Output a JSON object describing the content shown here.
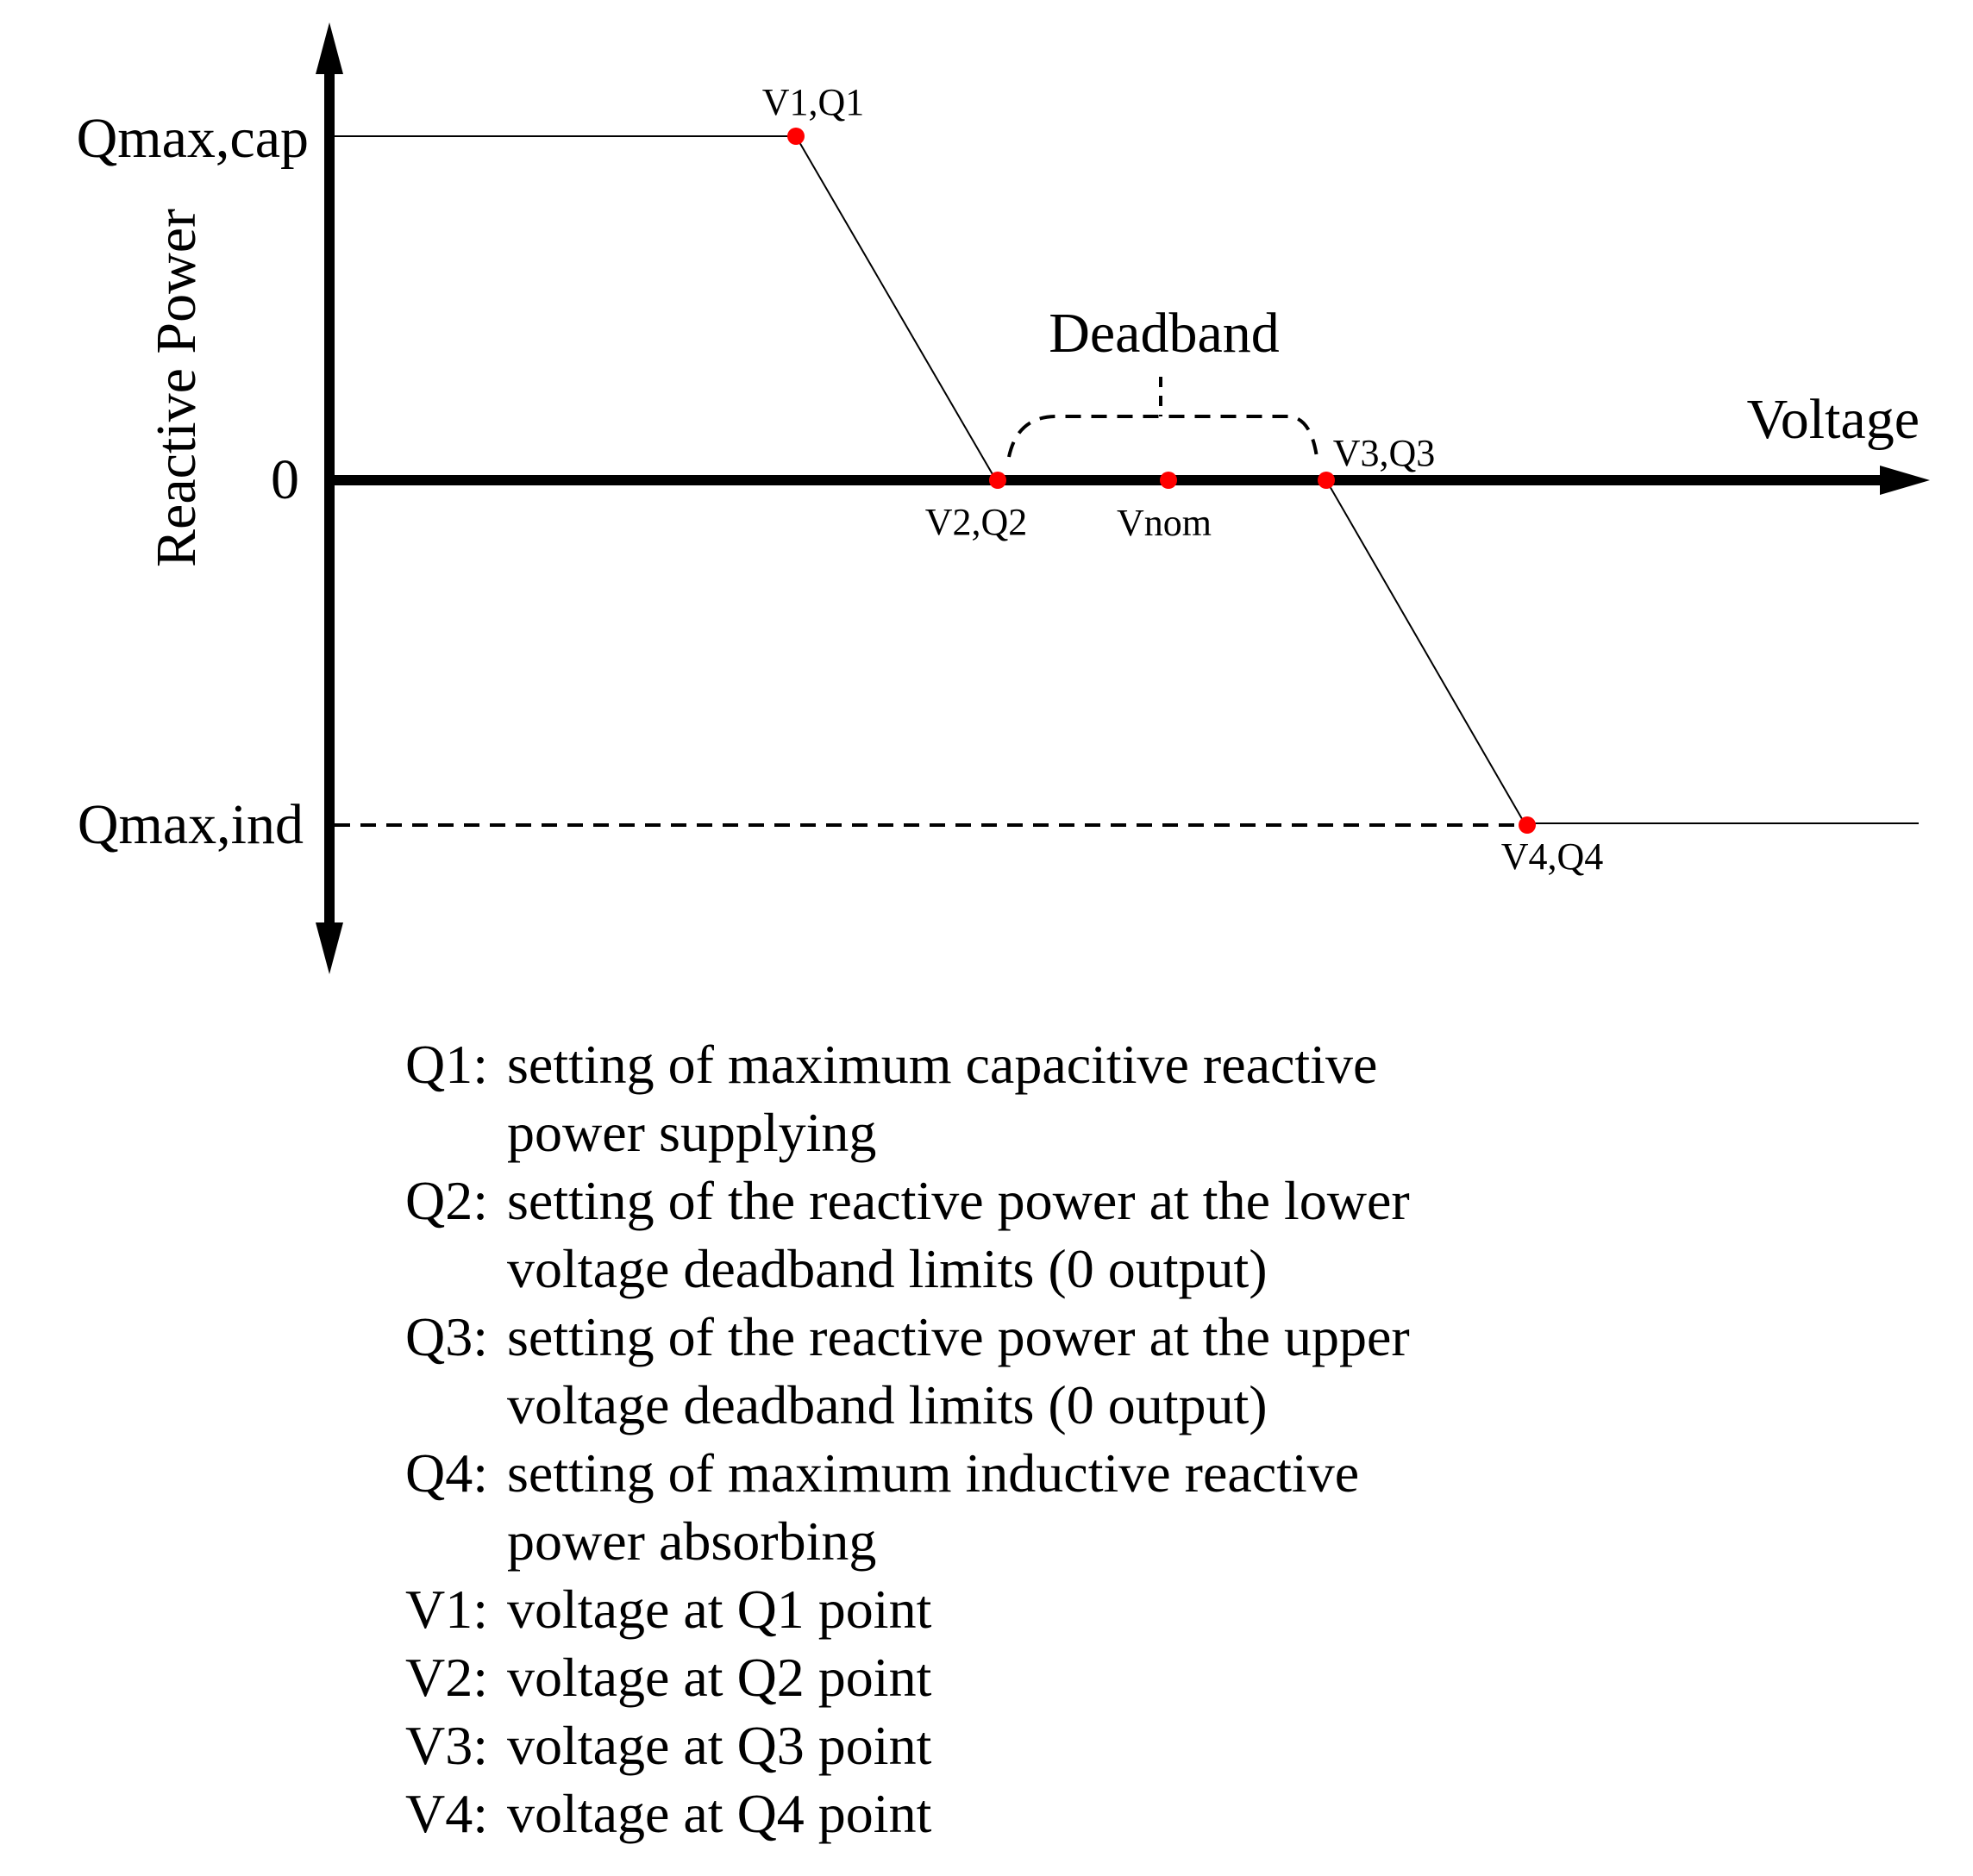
{
  "diagram": {
    "y_axis_label": "Reactive Power",
    "x_axis_label": "Voltage",
    "q_max_cap_label": "Qmax,cap",
    "zero_label": "0",
    "q_max_ind_label": "Qmax,ind",
    "deadband_label": "Deadband",
    "points": {
      "v1q1": "V1,Q1",
      "v2q2": "V2,Q2",
      "vnom": "Vnom",
      "v3q3": "V3,Q3",
      "v4q4": "V4,Q4"
    },
    "colors": {
      "point": "#ff0000",
      "line": "#000000"
    }
  },
  "notes": [
    {
      "key": "Q1:",
      "lines": [
        "setting of maximum capacitive reactive",
        "power supplying"
      ]
    },
    {
      "key": "Q2:",
      "lines": [
        "setting of the reactive power at the lower",
        "voltage deadband limits (0 output)"
      ]
    },
    {
      "key": "Q3:",
      "lines": [
        "setting of the reactive power at the upper",
        "voltage deadband limits (0 output)"
      ]
    },
    {
      "key": "Q4:",
      "lines": [
        "setting of maximum inductive reactive",
        "power absorbing"
      ]
    },
    {
      "key": "V1:",
      "lines": [
        "voltage at Q1 point"
      ]
    },
    {
      "key": "V2:",
      "lines": [
        "voltage at Q2 point"
      ]
    },
    {
      "key": "V3:",
      "lines": [
        "voltage at Q3 point"
      ]
    },
    {
      "key": "V4:",
      "lines": [
        "voltage at Q4 point"
      ]
    }
  ]
}
